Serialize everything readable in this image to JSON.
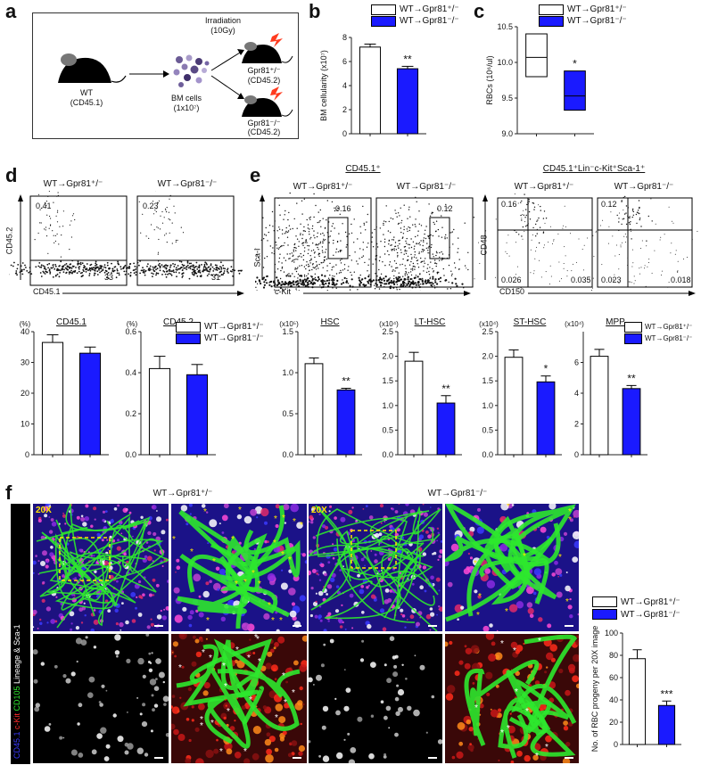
{
  "colors": {
    "wt_het": "#ffffff",
    "wt_ko": "#1a1aff",
    "axis": "#222222",
    "vessel": "#2ee82e",
    "star_yellow": "#ffe600"
  },
  "panel_labels": {
    "a": "a",
    "b": "b",
    "c": "c",
    "d": "d",
    "e": "e",
    "f": "f"
  },
  "legend": {
    "het": "WT→Gpr81⁺/⁻",
    "ko": "WT→Gpr81⁻/⁻"
  },
  "panel_a": {
    "wt_label": "WT",
    "wt_sub": "(CD45.1)",
    "bm_label": "BM cells",
    "bm_sub": "(1x10⁷)",
    "irr_label": "Irradiation",
    "irr_sub": "(10Gy)",
    "het_label": "Gpr81⁺/⁻",
    "het_sub": "(CD45.2)",
    "ko_label": "Gpr81⁻/⁻",
    "ko_sub": "(CD45.2)"
  },
  "panel_d": {
    "titles": [
      "WT→Gpr81⁺/⁻",
      "WT→Gpr81⁻/⁻"
    ],
    "ylabel": "CD45.2",
    "xlabel": "CD45.1",
    "plots": [
      {
        "tl": "0.41",
        "br": "33"
      },
      {
        "tl": "0.23",
        "br": "31"
      }
    ]
  },
  "panel_e": {
    "group1": "CD45.1⁺",
    "group2": "CD45.1⁺Lin⁻c-Kit⁺Sca-1⁺",
    "titles": [
      "WT→Gpr81⁺/⁻",
      "WT→Gpr81⁻/⁻",
      "WT→Gpr81⁺/⁻",
      "WT→Gpr81⁻/⁻"
    ],
    "ylabel1": "Sca-I",
    "xlabel1": "c-Kit",
    "ylabel2": "CD48",
    "xlabel2": "CD150",
    "kit_plots": [
      {
        "gate": "0.16"
      },
      {
        "gate": "0.12"
      }
    ],
    "slam_plots": [
      {
        "tl": "0.16",
        "bl": "0.026",
        "br": "0.035"
      },
      {
        "tl": "0.12",
        "bl": "0.023",
        "br": "0.018"
      }
    ]
  },
  "panel_f": {
    "title_het": "WT→Gpr81⁺/⁻",
    "title_ko": "WT→Gpr81⁻/⁻",
    "mag": "20X",
    "side_blue": "CD45.1 ",
    "side_red": "c-Kit ",
    "side_green": "CD105 ",
    "side_white": "Lineage & Sca-1"
  },
  "chart_data": [
    {
      "id": "b",
      "type": "bar",
      "categories": [
        "WT→Gpr81⁺/⁻",
        "WT→Gpr81⁻/⁻"
      ],
      "values": [
        7.2,
        5.4
      ],
      "errors": [
        0.25,
        0.2
      ],
      "ylabel": "BM cellularity (x10⁷)",
      "ylim": [
        0,
        8
      ],
      "yticks": [
        0,
        2,
        4,
        6,
        8
      ],
      "sig": "**"
    },
    {
      "id": "c",
      "type": "box",
      "categories": [
        "WT→Gpr81⁺/⁻",
        "WT→Gpr81⁻/⁻"
      ],
      "boxes": [
        {
          "low": 9.8,
          "mid": 10.07,
          "high": 10.4
        },
        {
          "low": 9.33,
          "mid": 9.53,
          "high": 9.88
        }
      ],
      "ylabel": "RBCs (10⁶/ul)",
      "ylim": [
        9.0,
        10.5
      ],
      "yticks": [
        "9.0",
        "9.5",
        "10.0",
        "10.5"
      ],
      "sig": "*"
    },
    {
      "id": "d1",
      "type": "bar",
      "title": "CD45.1",
      "unit": "(%)",
      "categories": [
        "WT→Gpr81⁺/⁻",
        "WT→Gpr81⁻/⁻"
      ],
      "values": [
        36.5,
        33
      ],
      "errors": [
        2.5,
        2
      ],
      "ylim": [
        0,
        40
      ],
      "yticks": [
        0,
        10,
        20,
        30,
        40
      ],
      "sig": ""
    },
    {
      "id": "d2",
      "type": "bar",
      "title": "CD45.2",
      "unit": "(%)",
      "categories": [
        "WT→Gpr81⁺/⁻",
        "WT→Gpr81⁻/⁻"
      ],
      "values": [
        0.42,
        0.39
      ],
      "errors": [
        0.06,
        0.05
      ],
      "ylim": [
        0,
        0.6
      ],
      "yticks": [
        "0.0",
        "0.2",
        "0.4",
        "0.6"
      ],
      "sig": ""
    },
    {
      "id": "hsc",
      "type": "bar",
      "title": "HSC",
      "unit": "(x10⁵)",
      "categories": [
        "WT→Gpr81⁺/⁻",
        "WT→Gpr81⁻/⁻"
      ],
      "values": [
        1.11,
        0.79
      ],
      "errors": [
        0.07,
        0.02
      ],
      "ylim": [
        0,
        1.5
      ],
      "yticks": [
        "0.0",
        "0.5",
        "1.0",
        "1.5"
      ],
      "sig": "**"
    },
    {
      "id": "lthsc",
      "type": "bar",
      "title": "LT-HSC",
      "unit": "(x10⁴)",
      "categories": [
        "WT→Gpr81⁺/⁻",
        "WT→Gpr81⁻/⁻"
      ],
      "values": [
        1.9,
        1.05
      ],
      "errors": [
        0.18,
        0.15
      ],
      "ylim": [
        0,
        2.5
      ],
      "yticks": [
        "0.0",
        "0.5",
        "1.0",
        "1.5",
        "2.0",
        "2.5"
      ],
      "sig": "**"
    },
    {
      "id": "sthsc",
      "type": "bar",
      "title": "ST-HSC",
      "unit": "(x10⁴)",
      "categories": [
        "WT→Gpr81⁺/⁻",
        "WT→Gpr81⁻/⁻"
      ],
      "values": [
        1.98,
        1.48
      ],
      "errors": [
        0.15,
        0.12
      ],
      "ylim": [
        0,
        2.5
      ],
      "yticks": [
        "0.0",
        "0.5",
        "1.0",
        "1.5",
        "2.0",
        "2.5"
      ],
      "sig": "*"
    },
    {
      "id": "mpp",
      "type": "bar",
      "title": "MPP",
      "unit": "(x10⁴)",
      "categories": [
        "WT→Gpr81⁺/⁻",
        "WT→Gpr81⁻/⁻"
      ],
      "values": [
        6.4,
        4.3
      ],
      "errors": [
        0.45,
        0.2
      ],
      "ylim": [
        0,
        8
      ],
      "yticks": [
        0,
        2,
        4,
        6
      ],
      "sig": "**"
    },
    {
      "id": "f",
      "type": "bar",
      "categories": [
        "WT→Gpr81⁺/⁻",
        "WT→Gpr81⁻/⁻"
      ],
      "values": [
        77,
        35
      ],
      "errors": [
        8,
        4
      ],
      "ylabel": "No. of RBC progeny per 20X image",
      "ylim": [
        0,
        100
      ],
      "yticks": [
        0,
        20,
        40,
        60,
        80,
        100
      ],
      "sig": "***"
    }
  ]
}
